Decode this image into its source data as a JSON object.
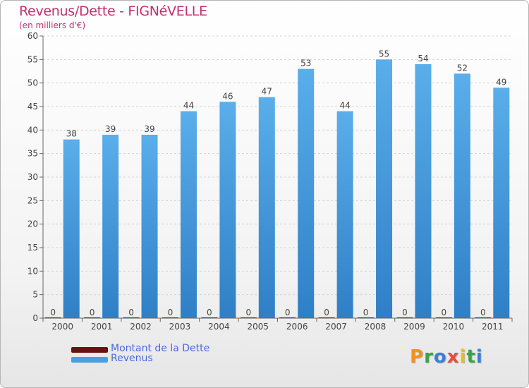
{
  "title": "Revenus/Dette - FIGNéVELLE",
  "subtitle": "(en milliers d'€)",
  "brand": "Proxiti",
  "colors": {
    "title": "#c0306f",
    "revenus": "#4a9fe3",
    "revenus_dark": "#2b79c2",
    "dette": "#6b0f0f",
    "legend_text": "#4a68e0"
  },
  "chart_data": {
    "type": "bar",
    "title": "Revenus/Dette - FIGNéVELLE",
    "subtitle": "(en milliers d'€)",
    "categories": [
      "2000",
      "2001",
      "2002",
      "2003",
      "2004",
      "2005",
      "2006",
      "2007",
      "2008",
      "2009",
      "2010",
      "2011"
    ],
    "series": [
      {
        "name": "Montant de la Dette",
        "values": [
          0,
          0,
          0,
          0,
          0,
          0,
          0,
          0,
          0,
          0,
          0,
          0
        ]
      },
      {
        "name": "Revenus",
        "values": [
          38,
          39,
          39,
          44,
          46,
          47,
          53,
          44,
          55,
          54,
          52,
          49
        ]
      }
    ],
    "ylim": [
      0,
      60
    ],
    "yticks": [
      0,
      5,
      10,
      15,
      20,
      25,
      30,
      35,
      40,
      45,
      50,
      55,
      60
    ],
    "grid": true,
    "legend": "bottom-left"
  }
}
